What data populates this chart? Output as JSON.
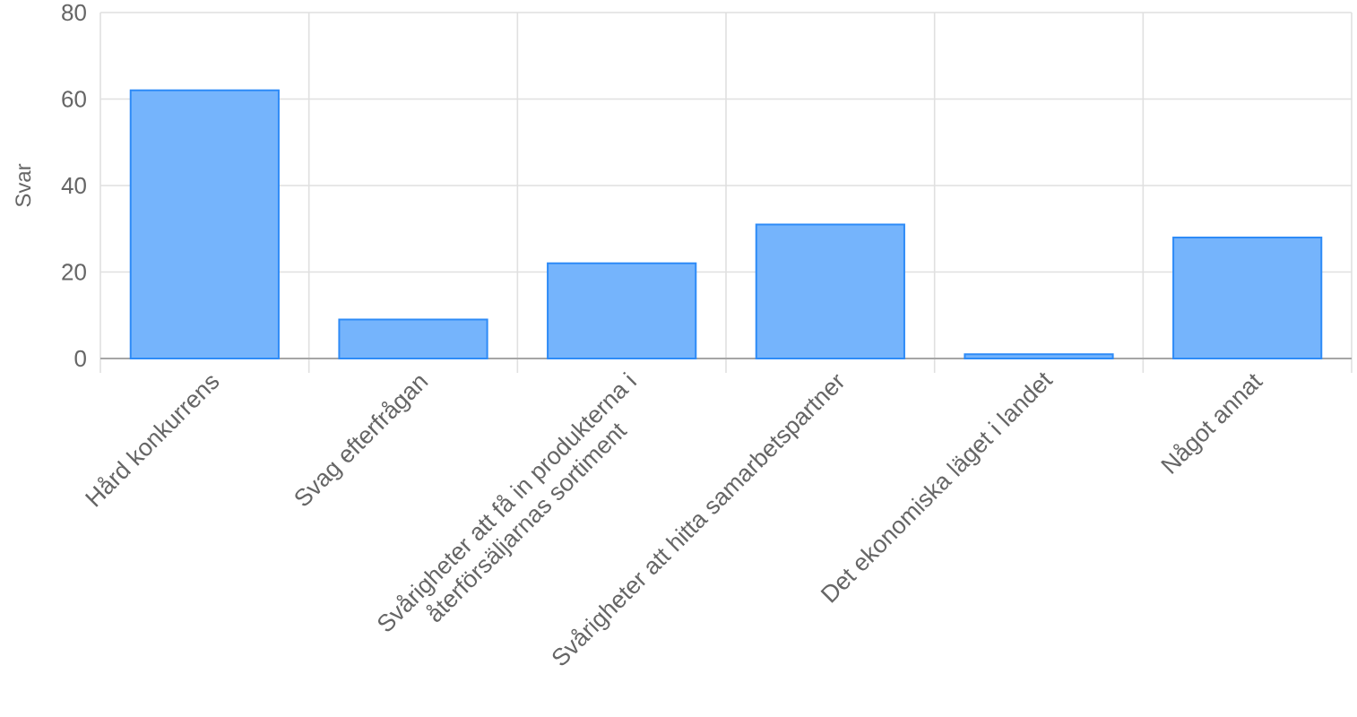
{
  "chart_data": {
    "type": "bar",
    "ylabel": "Svar",
    "categories": [
      "Hård konkurrens",
      "Svag efterfrågan",
      "Svårigheter att få in produkterna i återförsäljarnas sortiment",
      "Svårigheter att hitta samarbetspartner",
      "Det ekonomiska läget i landet",
      "Något annat"
    ],
    "values": [
      62,
      9,
      22,
      31,
      1,
      28
    ],
    "color": "#75b4fc",
    "ylim": [
      0,
      80
    ],
    "yticks": [
      0,
      20,
      40,
      60,
      80
    ],
    "grid": true
  }
}
